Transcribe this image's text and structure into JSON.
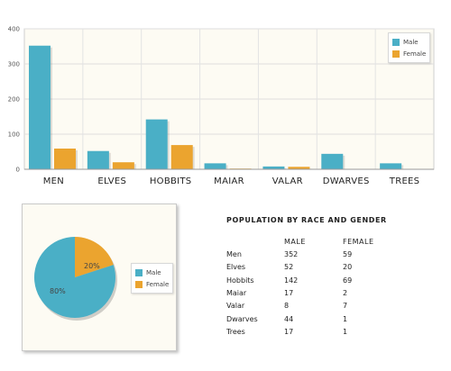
{
  "chart_data": [
    {
      "type": "bar",
      "categories": [
        "MEN",
        "ELVES",
        "HOBBITS",
        "MAIAR",
        "VALAR",
        "DWARVES",
        "TREES"
      ],
      "series": [
        {
          "name": "Male",
          "values": [
            352,
            52,
            142,
            17,
            8,
            44,
            17
          ]
        },
        {
          "name": "Female",
          "values": [
            59,
            20,
            69,
            2,
            7,
            1,
            1
          ]
        }
      ],
      "ylim": [
        0,
        400
      ],
      "yticks": [
        "0",
        "100",
        "200",
        "300",
        "400"
      ],
      "grid": true,
      "legend_position": "top-right"
    },
    {
      "type": "pie",
      "labels": [
        "Male",
        "Female"
      ],
      "values": [
        80,
        20
      ],
      "slice_labels": [
        "80%",
        "20%"
      ],
      "legend_position": "right"
    },
    {
      "type": "table",
      "title": "POPULATION BY RACE AND GENDER",
      "columns": [
        "MALE",
        "FEMALE"
      ],
      "rows": [
        {
          "race": "Men",
          "male": "352",
          "female": "59"
        },
        {
          "race": "Elves",
          "male": "52",
          "female": "20"
        },
        {
          "race": "Hobbits",
          "male": "142",
          "female": "69"
        },
        {
          "race": "Maiar",
          "male": "17",
          "female": "2"
        },
        {
          "race": "Valar",
          "male": "8",
          "female": "7"
        },
        {
          "race": "Dwarves",
          "male": "44",
          "female": "1"
        },
        {
          "race": "Trees",
          "male": "17",
          "female": "1"
        }
      ]
    }
  ],
  "colors": {
    "male": "#4aafc6",
    "female": "#eba42f",
    "panel_bg": "#fdfbf3"
  }
}
